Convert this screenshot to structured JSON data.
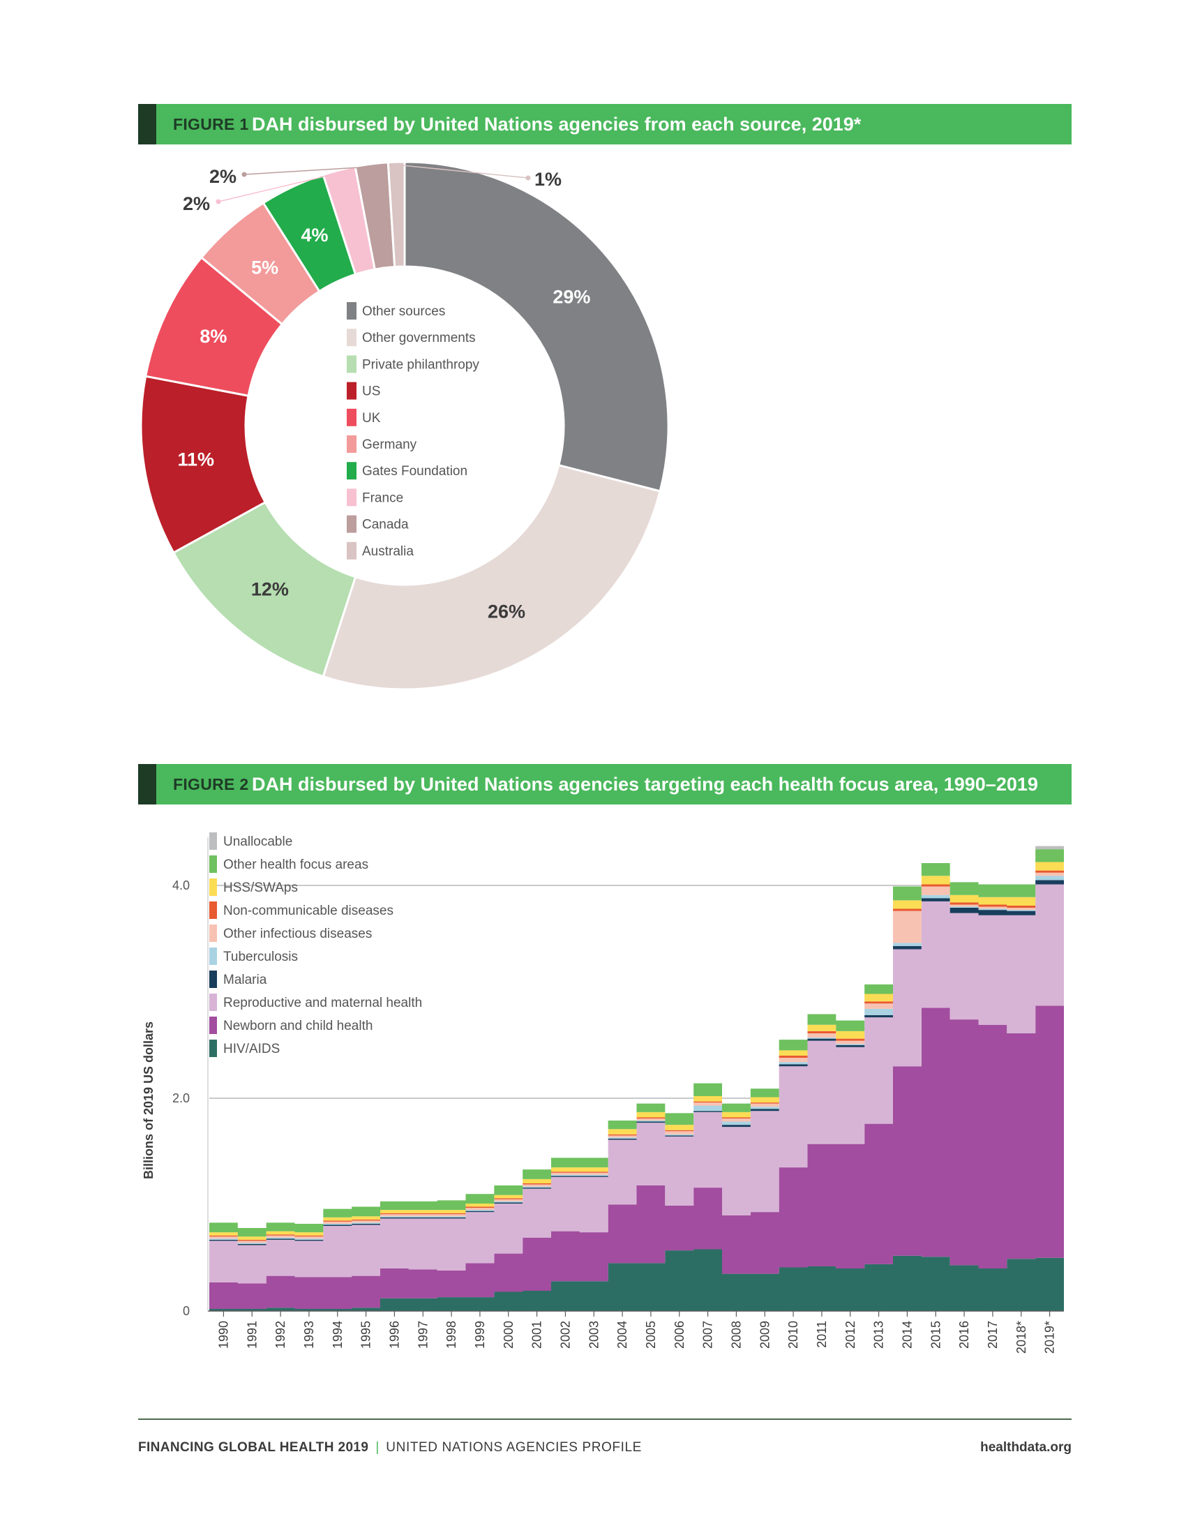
{
  "figure1": {
    "label": "FIGURE 1",
    "title": "DAH disbursed by United Nations agencies from each source, 2019*"
  },
  "figure2": {
    "label": "FIGURE 2",
    "title": "DAH disbursed by United Nations agencies targeting each health focus area, 1990–2019"
  },
  "footer": {
    "publication": "FINANCING GLOBAL HEALTH 2019",
    "separator": "|",
    "subtitle": "UNITED NATIONS AGENCIES PROFILE",
    "website": "healthdata.org"
  },
  "chart_data": [
    {
      "type": "pie",
      "donut": true,
      "title": "DAH disbursed by United Nations agencies from each source, 2019*",
      "legend_position": "center",
      "slices": [
        {
          "name": "Other sources",
          "label": "29%",
          "value": 29,
          "color": "#808184"
        },
        {
          "name": "Other governments",
          "label": "26%",
          "value": 26,
          "color": "#e6dad7"
        },
        {
          "name": "Private philanthropy",
          "label": "12%",
          "value": 12,
          "color": "#b6deb1"
        },
        {
          "name": "US",
          "label": "11%",
          "value": 11,
          "color": "#bb1f29"
        },
        {
          "name": "UK",
          "label": "8%",
          "value": 8,
          "color": "#ee4d5e"
        },
        {
          "name": "Germany",
          "label": "5%",
          "value": 5,
          "color": "#f39a9a"
        },
        {
          "name": "Gates Foundation",
          "label": "4%",
          "value": 4,
          "color": "#22ac4b"
        },
        {
          "name": "France",
          "label": "2%",
          "value": 2,
          "color": "#f7c1d2"
        },
        {
          "name": "Canada",
          "label": "2%",
          "value": 2,
          "color": "#bb9e9d"
        },
        {
          "name": "Australia",
          "label": "1%",
          "value": 1,
          "color": "#d9c3c3"
        }
      ]
    },
    {
      "type": "area",
      "stacked": true,
      "step": true,
      "title": "DAH disbursed by United Nations agencies targeting each health focus area, 1990–2019",
      "xlabel": "",
      "ylabel": "Billions of 2019 US dollars",
      "ylim": [
        0,
        4.4
      ],
      "yticks": [
        0,
        2.0,
        4.0
      ],
      "ytick_labels": [
        "0",
        "2.0",
        "4.0"
      ],
      "gridlines": [
        2.0,
        4.0
      ],
      "legend_position": "top-left",
      "categories": [
        "1990",
        "1991",
        "1992",
        "1993",
        "1994",
        "1995",
        "1996",
        "1997",
        "1998",
        "1999",
        "2000",
        "2001",
        "2002",
        "2003",
        "2004",
        "2005",
        "2006",
        "2007",
        "2008",
        "2009",
        "2010",
        "2011",
        "2012",
        "2013",
        "2014",
        "2015",
        "2016",
        "2017",
        "2018*",
        "2019*"
      ],
      "series": [
        {
          "name": "HIV/AIDS",
          "color": "#2c6e64",
          "values": [
            0.02,
            0.02,
            0.03,
            0.02,
            0.02,
            0.03,
            0.12,
            0.12,
            0.13,
            0.13,
            0.18,
            0.19,
            0.28,
            0.28,
            0.45,
            0.45,
            0.57,
            0.58,
            0.35,
            0.35,
            0.41,
            0.42,
            0.4,
            0.44,
            0.52,
            0.51,
            0.43,
            0.4,
            0.49,
            0.5
          ]
        },
        {
          "name": "Newborn and child health",
          "color": "#a24d9f",
          "values": [
            0.25,
            0.24,
            0.3,
            0.3,
            0.3,
            0.3,
            0.28,
            0.27,
            0.25,
            0.32,
            0.36,
            0.5,
            0.47,
            0.46,
            0.55,
            0.73,
            0.42,
            0.58,
            0.55,
            0.58,
            0.94,
            1.15,
            1.17,
            1.32,
            1.78,
            2.34,
            2.31,
            2.29,
            2.12,
            2.37
          ]
        },
        {
          "name": "Reproductive and maternal health",
          "color": "#d7b4d6",
          "values": [
            0.39,
            0.36,
            0.34,
            0.34,
            0.48,
            0.48,
            0.47,
            0.48,
            0.49,
            0.48,
            0.47,
            0.46,
            0.51,
            0.52,
            0.61,
            0.59,
            0.65,
            0.71,
            0.83,
            0.95,
            0.95,
            0.97,
            0.91,
            1.0,
            1.1,
            1.0,
            1.0,
            1.03,
            1.11,
            1.14
          ]
        },
        {
          "name": "Malaria",
          "color": "#183e5c",
          "values": [
            0.01,
            0.01,
            0.01,
            0.01,
            0.01,
            0.01,
            0.01,
            0.01,
            0.01,
            0.01,
            0.01,
            0.01,
            0.01,
            0.01,
            0.01,
            0.01,
            0.01,
            0.01,
            0.02,
            0.02,
            0.02,
            0.02,
            0.02,
            0.02,
            0.03,
            0.03,
            0.05,
            0.05,
            0.04,
            0.04
          ]
        },
        {
          "name": "Tuberculosis",
          "color": "#a9d3e3",
          "values": [
            0.01,
            0.01,
            0.01,
            0.01,
            0.01,
            0.01,
            0.01,
            0.01,
            0.01,
            0.01,
            0.01,
            0.01,
            0.01,
            0.01,
            0.01,
            0.01,
            0.01,
            0.05,
            0.03,
            0.02,
            0.02,
            0.01,
            0.01,
            0.06,
            0.03,
            0.03,
            0.01,
            0.01,
            0.01,
            0.04
          ]
        },
        {
          "name": "Other infectious diseases",
          "color": "#f7c2b2",
          "values": [
            0.02,
            0.02,
            0.02,
            0.02,
            0.02,
            0.02,
            0.02,
            0.02,
            0.02,
            0.02,
            0.02,
            0.02,
            0.02,
            0.02,
            0.02,
            0.02,
            0.03,
            0.03,
            0.03,
            0.03,
            0.04,
            0.04,
            0.03,
            0.05,
            0.3,
            0.08,
            0.02,
            0.02,
            0.02,
            0.03
          ]
        },
        {
          "name": "Non-communicable diseases",
          "color": "#e85a30",
          "values": [
            0.01,
            0.01,
            0.01,
            0.01,
            0.01,
            0.01,
            0.01,
            0.01,
            0.01,
            0.01,
            0.01,
            0.01,
            0.01,
            0.01,
            0.01,
            0.01,
            0.01,
            0.01,
            0.01,
            0.01,
            0.02,
            0.02,
            0.02,
            0.02,
            0.02,
            0.02,
            0.02,
            0.02,
            0.02,
            0.02
          ]
        },
        {
          "name": "HSS/SWAps",
          "color": "#fbdc55",
          "values": [
            0.03,
            0.03,
            0.03,
            0.03,
            0.03,
            0.03,
            0.03,
            0.03,
            0.03,
            0.03,
            0.03,
            0.04,
            0.04,
            0.04,
            0.05,
            0.05,
            0.05,
            0.05,
            0.05,
            0.05,
            0.05,
            0.06,
            0.07,
            0.07,
            0.08,
            0.08,
            0.07,
            0.07,
            0.08,
            0.08
          ]
        },
        {
          "name": "Other health focus areas",
          "color": "#6ec15e",
          "values": [
            0.09,
            0.08,
            0.08,
            0.08,
            0.08,
            0.09,
            0.08,
            0.08,
            0.09,
            0.09,
            0.09,
            0.09,
            0.09,
            0.09,
            0.08,
            0.08,
            0.11,
            0.12,
            0.08,
            0.08,
            0.1,
            0.1,
            0.1,
            0.09,
            0.13,
            0.12,
            0.12,
            0.12,
            0.12,
            0.12
          ]
        },
        {
          "name": "Unallocable",
          "color": "#bcbec0",
          "values": [
            0,
            0,
            0,
            0,
            0,
            0,
            0,
            0,
            0,
            0,
            0,
            0,
            0,
            0,
            0,
            0,
            0,
            0,
            0,
            0,
            0,
            0,
            0,
            0,
            0,
            0,
            0,
            0,
            0,
            0.03
          ]
        }
      ]
    }
  ]
}
